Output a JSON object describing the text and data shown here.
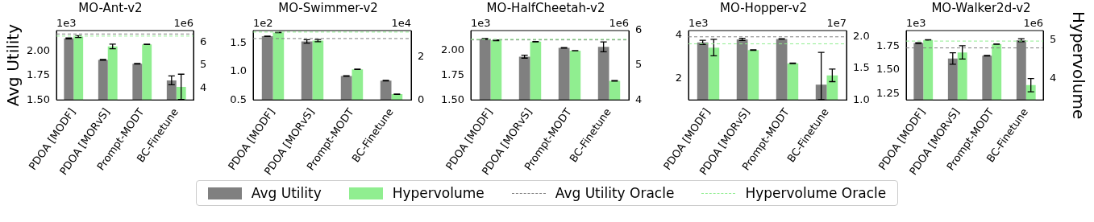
{
  "chart_data": [
    {
      "type": "bar",
      "title": "MO-Ant-v2",
      "annotations": [
        "1e3",
        "1e6"
      ],
      "ylabel": "Avg Utility",
      "legend": "bottom",
      "categories": [
        "PDOA [MODF]",
        "PDOA [MORvS]",
        "Prompt-MODT",
        "BC-Finetune"
      ],
      "series": [
        {
          "name": "Avg Utility",
          "color": "#808080",
          "values": [
            2.13,
            1.91,
            1.87,
            1.7
          ],
          "errors": [
            0.005,
            0.004,
            0.003,
            0.045
          ]
        },
        {
          "name": "Hypervolume",
          "color": "#90ee90",
          "axis": "y2",
          "values": [
            6.24,
            5.81,
            5.9,
            4.05
          ],
          "errors": [
            0.04,
            0.1,
            0.01,
            0.55
          ]
        }
      ],
      "ylim": [
        1.5,
        2.21
      ],
      "yticks": [
        {
          "value": 1.5,
          "label": "1.50"
        },
        {
          "value": 1.75,
          "label": "1.75"
        },
        {
          "value": 2,
          "label": "2.00"
        }
      ],
      "y2lim": [
        3.48,
        6.5
      ],
      "y2ticks": [
        4,
        5,
        6
      ],
      "ref_lines": [
        {
          "axis": "y",
          "value": 2.175,
          "label": "Avg Utility Oracle",
          "color": "#808080",
          "line_style": "dashed"
        },
        {
          "axis": "y2",
          "value": 6.26,
          "label": "Hypervolume Oracle",
          "color": "#90ee90",
          "line_style": "dashed"
        }
      ]
    },
    {
      "type": "bar",
      "title": "MO-Swimmer-v2",
      "annotations": [
        "1e2",
        "1e4"
      ],
      "categories": [
        "PDOA [MODF]",
        "PDOA [MORvS]",
        "Prompt-MODT",
        "BC-Finetune"
      ],
      "series": [
        {
          "color": "#808080",
          "values": [
            1.62,
            1.53,
            0.92,
            0.84
          ],
          "errors": [
            0.004,
            0.03,
            0.004,
            0.005
          ]
        },
        {
          "color": "#90ee90",
          "axis": "y2",
          "values": [
            3.15,
            2.77,
            1.43,
            0.27
          ],
          "errors": [
            0.01,
            0.05,
            0.01,
            0.01
          ]
        }
      ],
      "ylim": [
        0.5,
        1.72
      ],
      "yticks": [
        0.5,
        {
          "value": 1,
          "label": "1.0"
        },
        1.5
      ],
      "y2lim": [
        0,
        3.24
      ],
      "y2ticks": [
        0,
        2
      ],
      "ref_lines": [
        {
          "axis": "y",
          "value": 1.58,
          "color": "#808080",
          "line_style": "dashed"
        },
        {
          "axis": "y2",
          "value": 3.17,
          "color": "#90ee90",
          "line_style": "dashed"
        }
      ]
    },
    {
      "type": "bar",
      "title": "MO-HalfCheetah-v2",
      "annotations": [
        "1e3",
        "1e6"
      ],
      "categories": [
        "PDOA [MODF]",
        "PDOA [MORvS]",
        "Prompt-MODT",
        "BC-Finetune"
      ],
      "series": [
        {
          "color": "#808080",
          "values": [
            2.12,
            1.94,
            2.03,
            2.04
          ],
          "errors": [
            0.004,
            0.015,
            0.003,
            0.05
          ]
        },
        {
          "color": "#90ee90",
          "axis": "y2",
          "values": [
            5.72,
            5.68,
            5.42,
            4.55
          ],
          "errors": [
            0.01,
            0.005,
            0.005,
            0.01
          ]
        }
      ],
      "ylim": [
        1.5,
        2.205
      ],
      "yticks": [
        {
          "value": 1.5,
          "label": "1.50"
        },
        {
          "value": 1.75,
          "label": "1.75"
        },
        {
          "value": 2,
          "label": "2.00"
        }
      ],
      "y2lim": [
        4,
        6
      ],
      "y2ticks": [
        4,
        5,
        6
      ],
      "ref_lines": [
        {
          "axis": "y",
          "value": 2.11,
          "color": "#808080",
          "line_style": "dashed"
        },
        {
          "axis": "y2",
          "value": 5.75,
          "color": "#90ee90",
          "line_style": "dashed"
        }
      ]
    },
    {
      "type": "bar",
      "title": "MO-Hopper-v2",
      "annotations": [
        "1e3",
        "1e7"
      ],
      "categories": [
        "PDOA [MODF]",
        "PDOA [MORvS]",
        "Prompt-MODT",
        "BC-Finetune"
      ],
      "series": [
        {
          "color": "#808080",
          "values": [
            3.66,
            3.8,
            3.82,
            1.7
          ],
          "errors": [
            0.1,
            0.05,
            0.01,
            [
              1.0,
              3.2
            ]
          ]
        },
        {
          "color": "#90ee90",
          "axis": "y2",
          "values": [
            1.83,
            1.79,
            1.58,
            1.39
          ],
          "errors": [
            0.13,
            0.005,
            0.004,
            0.1
          ]
        }
      ],
      "ylim": [
        0.99,
        4.21
      ],
      "yticks": [
        2,
        4
      ],
      "y2lim": [
        1,
        2.1
      ],
      "y2ticks": [
        {
          "value": 1,
          "label": "1.0"
        },
        1.5,
        {
          "value": 2,
          "label": "2.0"
        }
      ],
      "ref_lines": [
        {
          "axis": "y",
          "value": 3.92,
          "color": "#808080",
          "line_style": "dashed"
        },
        {
          "axis": "y2",
          "value": 1.89,
          "color": "#90ee90",
          "line_style": "dashed"
        }
      ]
    },
    {
      "type": "bar",
      "title": "MO-Walker2d-v2",
      "annotations": [
        "1e3",
        "1e6"
      ],
      "y2label": "Hypervolume",
      "categories": [
        "PDOA [MODF]",
        "PDOA [MORvS]",
        "Prompt-MODT",
        "BC-Finetune"
      ],
      "series": [
        {
          "color": "#808080",
          "values": [
            1.78,
            1.62,
            1.65,
            1.81
          ],
          "errors": [
            0.004,
            0.06,
            0.003,
            0.015
          ]
        },
        {
          "color": "#90ee90",
          "axis": "y2",
          "values": [
            5.0,
            4.68,
            4.89,
            3.84
          ],
          "errors": [
            0.005,
            0.17,
            0.005,
            0.17
          ]
        }
      ],
      "ylim": [
        1.19,
        1.91
      ],
      "yticks": [
        {
          "value": 1.25,
          "label": "1.25"
        },
        {
          "value": 1.5,
          "label": "1.50"
        },
        {
          "value": 1.75,
          "label": "1.75"
        }
      ],
      "y2lim": [
        3.46,
        5.24
      ],
      "y2ticks": [
        4,
        5
      ],
      "ref_lines": [
        {
          "axis": "y",
          "value": 1.73,
          "color": "#808080",
          "line_style": "dashed"
        },
        {
          "axis": "y2",
          "value": 4.97,
          "color": "#90ee90",
          "line_style": "dashed"
        }
      ]
    }
  ]
}
